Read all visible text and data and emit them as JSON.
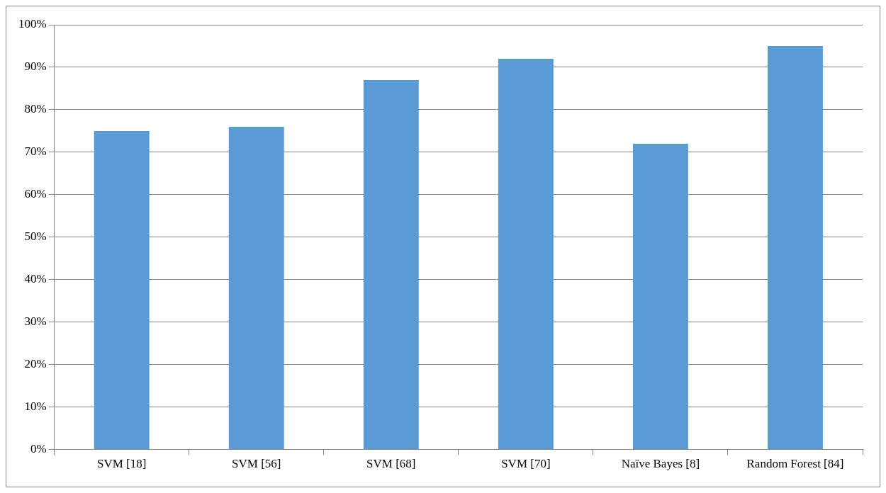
{
  "chart_data": {
    "type": "bar",
    "categories": [
      "SVM [18]",
      "SVM [56]",
      "SVM [68]",
      "SVM [70]",
      "Naïve Bayes [8]",
      "Random Forest [84]"
    ],
    "values": [
      75,
      76,
      87,
      92,
      72,
      95
    ],
    "color": "#5b9bd5",
    "ylim": [
      0,
      100
    ],
    "yticks": [
      {
        "value": 0,
        "label": "0%"
      },
      {
        "value": 10,
        "label": "10%"
      },
      {
        "value": 20,
        "label": "20%"
      },
      {
        "value": 30,
        "label": "30%"
      },
      {
        "value": 40,
        "label": "40%"
      },
      {
        "value": 50,
        "label": "50%"
      },
      {
        "value": 60,
        "label": "60%"
      },
      {
        "value": 70,
        "label": "70%"
      },
      {
        "value": 80,
        "label": "80%"
      },
      {
        "value": 90,
        "label": "90%"
      },
      {
        "value": 100,
        "label": "100%"
      }
    ],
    "grid": "y",
    "legend": false
  }
}
